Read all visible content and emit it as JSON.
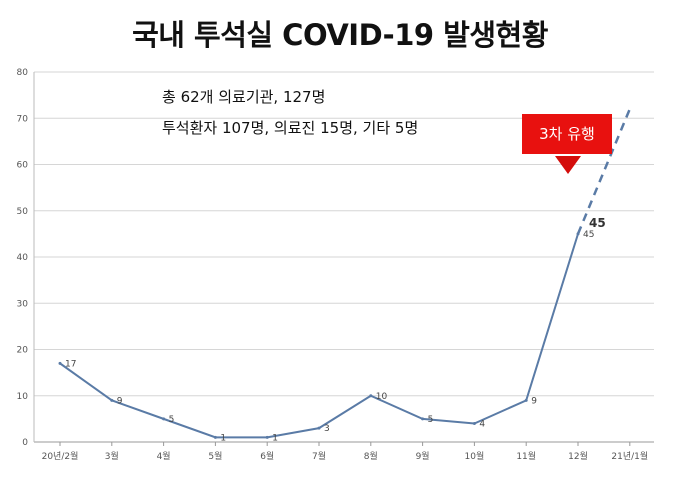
{
  "header": {
    "title": "국내 투석실 COVID-19 발생현황",
    "note_line1": "총 62개 의료기관, 127명",
    "note_line2": "투석환자 107명, 의료진 15명, 기타 5명",
    "badge": "3차 유행"
  },
  "chart_data": {
    "type": "line",
    "title": "국내 투석실 COVID-19 발생현황",
    "categories": [
      "20년/2월",
      "3월",
      "4월",
      "5월",
      "6월",
      "7월",
      "8월",
      "9월",
      "10월",
      "11월",
      "12월",
      "21년/1월"
    ],
    "series": [
      {
        "values": [
          17,
          9,
          5,
          1,
          1,
          3,
          10,
          5,
          4,
          9,
          45,
          null
        ],
        "color": "#5a7ba6"
      }
    ],
    "projection": {
      "from": [
        10,
        45
      ],
      "to": [
        11,
        72
      ],
      "style": "dashed"
    },
    "highlight_label": "45",
    "yticks": [
      0,
      10,
      20,
      30,
      40,
      50,
      60,
      70,
      80
    ],
    "ylim": [
      0,
      80
    ],
    "grid": true
  }
}
